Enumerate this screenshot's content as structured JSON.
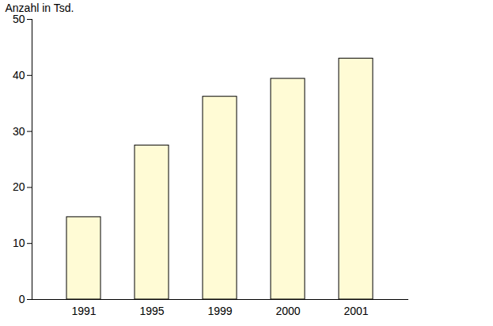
{
  "chart_data": {
    "type": "bar",
    "ylabel": "Anzahl in Tsd.",
    "categories": [
      "1991",
      "1995",
      "1999",
      "2000",
      "2001"
    ],
    "values": [
      14.7,
      27.5,
      36.2,
      39.4,
      43.0
    ],
    "color": "#fffbd5",
    "ylim": [
      0,
      50
    ],
    "yticks": [
      0,
      10,
      20,
      30,
      40,
      50
    ],
    "grid": false
  }
}
